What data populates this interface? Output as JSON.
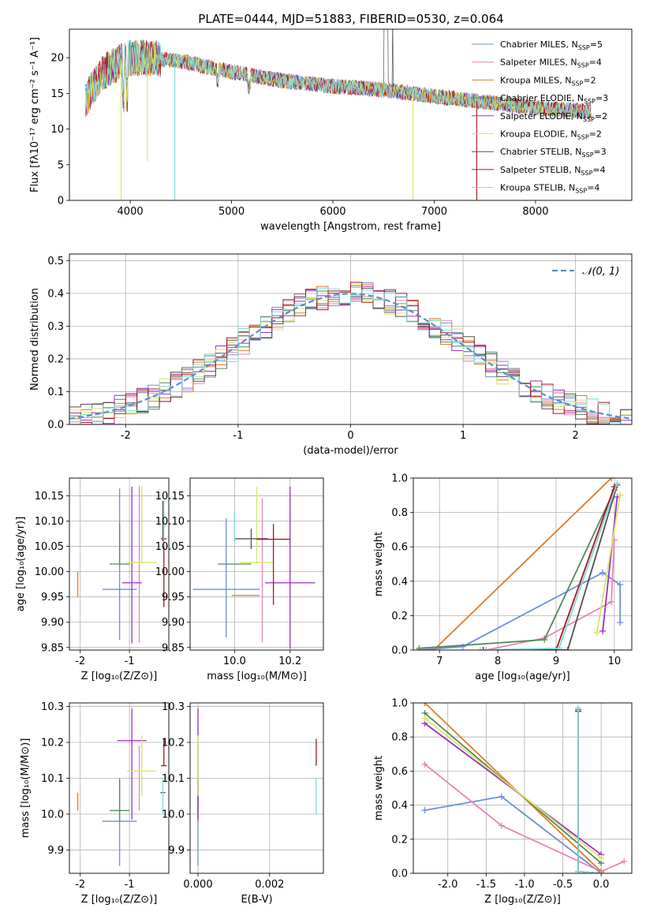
{
  "figure": {
    "title": "PLATE=0444, MJD=51883, FIBERID=0530, z=0.064"
  },
  "colors": {
    "Chabrier MILES": "#6a8fdb",
    "Salpeter MILES": "#e586b2",
    "Kroupa MILES": "#e07b25",
    "Chabrier ELODIE": "#55875c",
    "Salpeter ELODIE": "#9b2fbf",
    "Kroupa ELODIE": "#d3e865",
    "Chabrier STELIB": "#505050",
    "Salpeter STELIB": "#a41818",
    "Kroupa STELIB": "#82d6dc",
    "normal": "#5b8ed0"
  },
  "chart_data": [
    {
      "id": "spectrum",
      "type": "line",
      "xlabel": "wavelength [Angstrom, rest frame]",
      "ylabel": "Flux [fλ10⁻¹⁷ erg cm⁻² s⁻¹ A⁻¹]",
      "xlim": [
        3400,
        8950
      ],
      "ylim": [
        0,
        24
      ],
      "xticks": [
        "4000",
        "5000",
        "6000",
        "7000",
        "8000"
      ],
      "yticks": [
        "0",
        "5",
        "10",
        "15",
        "20"
      ],
      "legend_position": "top-right",
      "legend": [
        "Chabrier MILES, N_SSP=5",
        "Salpeter MILES, N_SSP=4",
        "Kroupa MILES, N_SSP=2",
        "Chabrier ELODIE, N_SSP=3",
        "Salpeter ELODIE, N_SSP=2",
        "Kroupa ELODIE, N_SSP=2",
        "Chabrier STELIB, N_SSP=3",
        "Salpeter STELIB, N_SSP=4",
        "Kroupa STELIB, N_SSP=4"
      ],
      "continuum": {
        "x": [
          3560,
          3700,
          3900,
          4000,
          4200,
          4500,
          5000,
          5500,
          6000,
          6500,
          7000,
          7500,
          8000,
          8500
        ],
        "y": [
          14,
          17.5,
          19.5,
          20,
          20,
          19.5,
          18,
          16.8,
          16,
          15.5,
          14.6,
          13.8,
          13,
          12.5
        ]
      },
      "features": [
        {
          "series": "Kroupa ELODIE",
          "x": 3910,
          "min": 0
        },
        {
          "series": "Kroupa ELODIE",
          "x": 4170,
          "min": 5.5
        },
        {
          "series": "Kroupa STELIB",
          "x": 4440,
          "min": 0
        },
        {
          "series": "Kroupa ELODIE",
          "x": 6790,
          "min": 0
        },
        {
          "series": "Salpeter STELIB",
          "x": 7420,
          "min": 0
        }
      ]
    },
    {
      "id": "residuals",
      "type": "histogram",
      "xlabel": "(data-model)/error",
      "ylabel": "Normed distribution",
      "xlim": [
        -2.5,
        2.5
      ],
      "ylim": [
        0,
        0.52
      ],
      "xticks": [
        "-2",
        "-1",
        "0",
        "1",
        "2"
      ],
      "yticks": [
        "0.0",
        "0.1",
        "0.2",
        "0.3",
        "0.4",
        "0.5"
      ],
      "grid": true,
      "bin_width": 0.1,
      "legend_position": "top-right",
      "curve_label": "𝒩(0, 1)"
    },
    {
      "id": "age-vs-Z",
      "type": "errorbar",
      "xlabel": "Z [log₁₀(Z/Z⊙)]",
      "ylabel": "age  [log₁₀(age/yr)]",
      "xlim": [
        -2.22,
        -0.2
      ],
      "ylim": [
        9.845,
        10.185
      ],
      "xticks": [
        {
          "v": -2,
          "t": "-2"
        },
        {
          "v": -1,
          "t": "-1"
        }
      ],
      "yticks": [
        {
          "v": 9.85,
          "t": "9.85"
        },
        {
          "v": 9.9,
          "t": "9.90"
        },
        {
          "v": 9.95,
          "t": "9.95"
        },
        {
          "v": 10.0,
          "t": "10.00"
        },
        {
          "v": 10.05,
          "t": "10.05"
        },
        {
          "v": 10.1,
          "t": "10.10"
        },
        {
          "v": 10.15,
          "t": "10.15"
        }
      ],
      "grid": true,
      "points": [
        {
          "series": "Chabrier MILES",
          "x": -1.2,
          "xerr": 0.35,
          "y": 9.965,
          "yerr": [
            0.1,
            0.2
          ]
        },
        {
          "series": "Salpeter MILES",
          "x": -0.8,
          "xerr": 0.0,
          "y": 10.0,
          "yerr": [
            0.14,
            0.17
          ]
        },
        {
          "series": "Kroupa MILES",
          "x": -2.05,
          "xerr": 0.0,
          "y": 9.975,
          "yerr": [
            0.025,
            0.025
          ]
        },
        {
          "series": "Chabrier ELODIE",
          "x": -1.2,
          "xerr": 0.2,
          "y": 10.015,
          "yerr": [
            0.0,
            0.08
          ]
        },
        {
          "series": "Salpeter ELODIE",
          "x": -0.95,
          "xerr": 0.2,
          "y": 9.978,
          "yerr": [
            0.12,
            0.19
          ]
        },
        {
          "series": "Kroupa ELODIE",
          "x": -0.75,
          "xerr": 0.3,
          "y": 10.018,
          "yerr": [
            0.0,
            0.15
          ]
        },
        {
          "series": "Chabrier STELIB",
          "x": -0.32,
          "xerr": 0.0,
          "y": 10.1,
          "yerr": [
            0.04,
            0.04
          ]
        },
        {
          "series": "Salpeter STELIB",
          "x": -0.3,
          "xerr": 0.06,
          "y": 10.065,
          "yerr": [
            0.135,
            0.0
          ]
        },
        {
          "series": "Kroupa STELIB",
          "x": -0.3,
          "xerr": 0.0,
          "y": 10.1,
          "yerr": [
            0.05,
            0.04
          ]
        }
      ]
    },
    {
      "id": "age-vs-mass",
      "type": "errorbar",
      "xlabel": "mass [log₁₀(M/M⊙)]",
      "ylabel": "",
      "xlim": [
        9.84,
        10.32
      ],
      "ylim": [
        9.845,
        10.185
      ],
      "xticks": [
        {
          "v": 10.0,
          "t": "10.0"
        },
        {
          "v": 10.2,
          "t": "10.2"
        }
      ],
      "yticks": [
        {
          "v": 9.85,
          "t": "9.85"
        },
        {
          "v": 9.9,
          "t": "9.90"
        },
        {
          "v": 9.95,
          "t": "9.95"
        },
        {
          "v": 10.0,
          "t": "10.00"
        },
        {
          "v": 10.05,
          "t": "10.05"
        },
        {
          "v": 10.1,
          "t": "10.10"
        },
        {
          "v": 10.15,
          "t": "10.15"
        }
      ],
      "grid": true,
      "points": [
        {
          "series": "Chabrier MILES",
          "x": 9.97,
          "xerr": 0.12,
          "y": 9.965,
          "yerr": [
            0.095,
            0.14
          ]
        },
        {
          "series": "Salpeter MILES",
          "x": 10.1,
          "xerr": 0.0,
          "y": 9.995,
          "yerr": [
            0.135,
            0.15
          ]
        },
        {
          "series": "Kroupa MILES",
          "x": 10.04,
          "xerr": 0.05,
          "y": 9.953,
          "yerr": [
            0.0,
            0.0
          ]
        },
        {
          "series": "Chabrier ELODIE",
          "x": 10.0,
          "xerr": 0.06,
          "y": 10.015,
          "yerr": [
            0.0,
            0.0
          ]
        },
        {
          "series": "Salpeter ELODIE",
          "x": 10.2,
          "xerr": 0.09,
          "y": 9.978,
          "yerr": [
            0.13,
            0.19
          ]
        },
        {
          "series": "Kroupa ELODIE",
          "x": 10.08,
          "xerr": 0.06,
          "y": 10.018,
          "yerr": [
            0.0,
            0.15
          ]
        },
        {
          "series": "Chabrier STELIB",
          "x": 10.06,
          "xerr": 0.06,
          "y": 10.065,
          "yerr": [
            0.02,
            0.02
          ]
        },
        {
          "series": "Salpeter STELIB",
          "x": 10.14,
          "xerr": 0.06,
          "y": 10.064,
          "yerr": [
            0.13,
            0.03
          ]
        },
        {
          "series": "Kroupa STELIB",
          "x": 10.0,
          "xerr": 0.0,
          "y": 10.06,
          "yerr": [
            0.0,
            0.06
          ]
        }
      ]
    },
    {
      "id": "mass-weight-vs-age",
      "type": "line",
      "xlabel": "age  [log₁₀(age/yr)]",
      "ylabel": "mass weight",
      "xlim": [
        6.55,
        10.3
      ],
      "ylim": [
        0,
        1
      ],
      "xticks": [
        {
          "v": 7,
          "t": "7"
        },
        {
          "v": 8,
          "t": "8"
        },
        {
          "v": 9,
          "t": "9"
        },
        {
          "v": 10,
          "t": "10"
        }
      ],
      "yticks": [
        {
          "v": 0,
          "t": "0.0"
        },
        {
          "v": 0.2,
          "t": "0.2"
        },
        {
          "v": 0.4,
          "t": "0.4"
        },
        {
          "v": 0.6,
          "t": "0.6"
        },
        {
          "v": 0.8,
          "t": "0.8"
        },
        {
          "v": 1,
          "t": "1.0"
        }
      ],
      "grid": true,
      "series": [
        {
          "name": "Chabrier MILES",
          "x": [
            6.65,
            7.4,
            9.8,
            10.1,
            10.1
          ],
          "y": [
            0.0,
            0.02,
            0.45,
            0.38,
            0.16
          ]
        },
        {
          "name": "Salpeter MILES",
          "x": [
            7.8,
            8.8,
            9.95,
            10.0
          ],
          "y": [
            0.0,
            0.07,
            0.28,
            0.64
          ]
        },
        {
          "name": "Kroupa MILES",
          "x": [
            6.9,
            9.95
          ],
          "y": [
            0.0,
            1.0
          ]
        },
        {
          "name": "Chabrier ELODIE",
          "x": [
            6.65,
            8.8,
            10.0
          ],
          "y": [
            0.01,
            0.06,
            0.93
          ]
        },
        {
          "name": "Salpeter ELODIE",
          "x": [
            9.8,
            10.05
          ],
          "y": [
            0.11,
            0.89
          ]
        },
        {
          "name": "Kroupa ELODIE",
          "x": [
            9.7,
            10.1
          ],
          "y": [
            0.1,
            0.9
          ]
        },
        {
          "name": "Chabrier STELIB",
          "x": [
            7.75,
            9.2,
            10.05
          ],
          "y": [
            0.0,
            0.0,
            0.96
          ]
        },
        {
          "name": "Salpeter STELIB",
          "x": [
            7.75,
            9.0,
            10.0
          ],
          "y": [
            0.0,
            0.0,
            0.95
          ]
        },
        {
          "name": "Kroupa STELIB",
          "x": [
            7.7,
            9.05,
            10.05
          ],
          "y": [
            0.0,
            0.01,
            0.97
          ]
        }
      ]
    },
    {
      "id": "mass-vs-Z",
      "type": "errorbar",
      "xlabel": "Z [log₁₀(Z/Z⊙)]",
      "ylabel": "mass [log₁₀(M/M⊙)]",
      "xlim": [
        -2.22,
        -0.2
      ],
      "ylim": [
        9.835,
        10.31
      ],
      "xticks": [
        {
          "v": -2,
          "t": "-2"
        },
        {
          "v": -1,
          "t": "-1"
        }
      ],
      "yticks": [
        {
          "v": 9.9,
          "t": "9.9"
        },
        {
          "v": 10.0,
          "t": "10.0"
        },
        {
          "v": 10.1,
          "t": "10.1"
        },
        {
          "v": 10.2,
          "t": "10.2"
        },
        {
          "v": 10.3,
          "t": "10.3"
        }
      ],
      "grid": true,
      "points": [
        {
          "series": "Chabrier MILES",
          "x": -1.2,
          "xerr": 0.35,
          "y": 9.98,
          "yerr": [
            0.125,
            0.115
          ]
        },
        {
          "series": "Salpeter MILES",
          "x": -0.8,
          "xerr": 0.0,
          "y": 10.1,
          "yerr": [
            0.09,
            0.09
          ]
        },
        {
          "series": "Kroupa MILES",
          "x": -2.05,
          "xerr": 0.0,
          "y": 10.04,
          "yerr": [
            0.03,
            0.02
          ]
        },
        {
          "series": "Chabrier ELODIE",
          "x": -1.2,
          "xerr": 0.2,
          "y": 10.01,
          "yerr": [
            0.03,
            0.09
          ]
        },
        {
          "series": "Salpeter ELODIE",
          "x": -0.95,
          "xerr": 0.3,
          "y": 10.205,
          "yerr": [
            0.22,
            0.09
          ]
        },
        {
          "series": "Kroupa ELODIE",
          "x": -0.75,
          "xerr": 0.3,
          "y": 10.12,
          "yerr": [
            0.07,
            0.1
          ]
        },
        {
          "series": "Chabrier STELIB",
          "x": -0.32,
          "xerr": 0.05,
          "y": 10.06,
          "yerr": [
            0.0,
            0.0
          ]
        },
        {
          "series": "Salpeter STELIB",
          "x": -0.3,
          "xerr": 0.06,
          "y": 10.135,
          "yerr": [
            0.0,
            0.075
          ]
        },
        {
          "series": "Kroupa STELIB",
          "x": -0.32,
          "xerr": 0.0,
          "y": 10.02,
          "yerr": [
            0.02,
            0.08
          ]
        }
      ]
    },
    {
      "id": "mass-vs-EBV",
      "type": "errorbar",
      "xlabel": "E(B-V)",
      "ylabel": "",
      "xlim": [
        -0.00022,
        0.0035
      ],
      "ylim": [
        9.835,
        10.31
      ],
      "xticks": [
        {
          "v": 0.0,
          "t": "0.000"
        },
        {
          "v": 0.002,
          "t": "0.002"
        }
      ],
      "yticks": [
        {
          "v": 9.9,
          "t": "9.9"
        },
        {
          "v": 10.0,
          "t": "10.0"
        },
        {
          "v": 10.1,
          "t": "10.1"
        },
        {
          "v": 10.2,
          "t": "10.2"
        },
        {
          "v": 10.3,
          "t": "10.3"
        }
      ],
      "grid": true,
      "points": [
        {
          "series": "Chabrier MILES",
          "x": 0.0,
          "xerr": 0.0,
          "y": 9.98,
          "yerr": [
            0.125,
            0.115
          ]
        },
        {
          "series": "Salpeter MILES",
          "x": 0.0,
          "xerr": 0.0,
          "y": 10.1,
          "yerr": [
            0.09,
            0.09
          ]
        },
        {
          "series": "Kroupa MILES",
          "x": 0.0,
          "xerr": 0.0,
          "y": 10.04,
          "yerr": [
            0.03,
            0.02
          ]
        },
        {
          "series": "Chabrier ELODIE",
          "x": 0.0,
          "xerr": 0.0,
          "y": 10.01,
          "yerr": [
            0.03,
            0.09
          ]
        },
        {
          "series": "Salpeter ELODIE",
          "x": 0.0,
          "xerr": 0.0,
          "y": 10.205,
          "yerr": [
            0.22,
            0.09
          ]
        },
        {
          "series": "Kroupa ELODIE",
          "x": 0.0,
          "xerr": 0.0,
          "y": 10.12,
          "yerr": [
            0.07,
            0.1
          ]
        },
        {
          "series": "Chabrier STELIB",
          "x": 0.0033,
          "xerr": 0.0,
          "y": 10.06,
          "yerr": [
            0.0,
            0.0
          ]
        },
        {
          "series": "Salpeter STELIB",
          "x": 0.0033,
          "xerr": 0.0,
          "y": 10.135,
          "yerr": [
            0.0,
            0.075
          ]
        },
        {
          "series": "Kroupa STELIB",
          "x": 0.0033,
          "xerr": 0.0,
          "y": 10.02,
          "yerr": [
            0.02,
            0.08
          ]
        }
      ]
    },
    {
      "id": "mass-weight-vs-Z",
      "type": "line",
      "xlabel": "Z [log₁₀(Z/Z⊙)]",
      "ylabel": "mass weight",
      "xlim": [
        -2.45,
        0.4
      ],
      "ylim": [
        0,
        1
      ],
      "xticks": [
        {
          "v": -2,
          "t": "-2.0"
        },
        {
          "v": -1.5,
          "t": "-1.5"
        },
        {
          "v": -1,
          "t": "-1.0"
        },
        {
          "v": -0.5,
          "t": "-0.5"
        },
        {
          "v": 0,
          "t": "0.0"
        }
      ],
      "yticks": [
        {
          "v": 0,
          "t": "0.0"
        },
        {
          "v": 0.2,
          "t": "0.2"
        },
        {
          "v": 0.4,
          "t": "0.4"
        },
        {
          "v": 0.6,
          "t": "0.6"
        },
        {
          "v": 0.8,
          "t": "0.8"
        },
        {
          "v": 1,
          "t": "1.0"
        }
      ],
      "grid": true,
      "series": [
        {
          "name": "Chabrier MILES",
          "x": [
            -2.3,
            -1.3,
            0.0,
            0.0
          ],
          "y": [
            0.37,
            0.45,
            0.0,
            0.01
          ]
        },
        {
          "name": "Salpeter MILES",
          "x": [
            -2.3,
            -1.3,
            0.0,
            0.3
          ],
          "y": [
            0.64,
            0.28,
            0.01,
            0.07
          ]
        },
        {
          "name": "Kroupa MILES",
          "x": [
            -2.3,
            0.0
          ],
          "y": [
            1.0,
            0.01
          ]
        },
        {
          "name": "Chabrier ELODIE",
          "x": [
            -2.3,
            0.0
          ],
          "y": [
            0.94,
            0.06
          ]
        },
        {
          "name": "Salpeter ELODIE",
          "x": [
            -2.3,
            0.0
          ],
          "y": [
            0.88,
            0.11
          ]
        },
        {
          "name": "Kroupa ELODIE",
          "x": [
            -2.3,
            0.0
          ],
          "y": [
            0.91,
            0.09
          ]
        },
        {
          "name": "Chabrier STELIB",
          "x": [
            -0.3,
            -0.3,
            0.0
          ],
          "y": [
            0.96,
            0.01,
            0.0
          ]
        },
        {
          "name": "Salpeter STELIB",
          "x": [
            -0.3,
            -0.3,
            0.0
          ],
          "y": [
            0.95,
            0.01,
            0.0
          ]
        },
        {
          "name": "Kroupa STELIB",
          "x": [
            -0.3,
            -0.3,
            0.0
          ],
          "y": [
            0.97,
            0.01,
            0.0
          ]
        }
      ]
    }
  ]
}
